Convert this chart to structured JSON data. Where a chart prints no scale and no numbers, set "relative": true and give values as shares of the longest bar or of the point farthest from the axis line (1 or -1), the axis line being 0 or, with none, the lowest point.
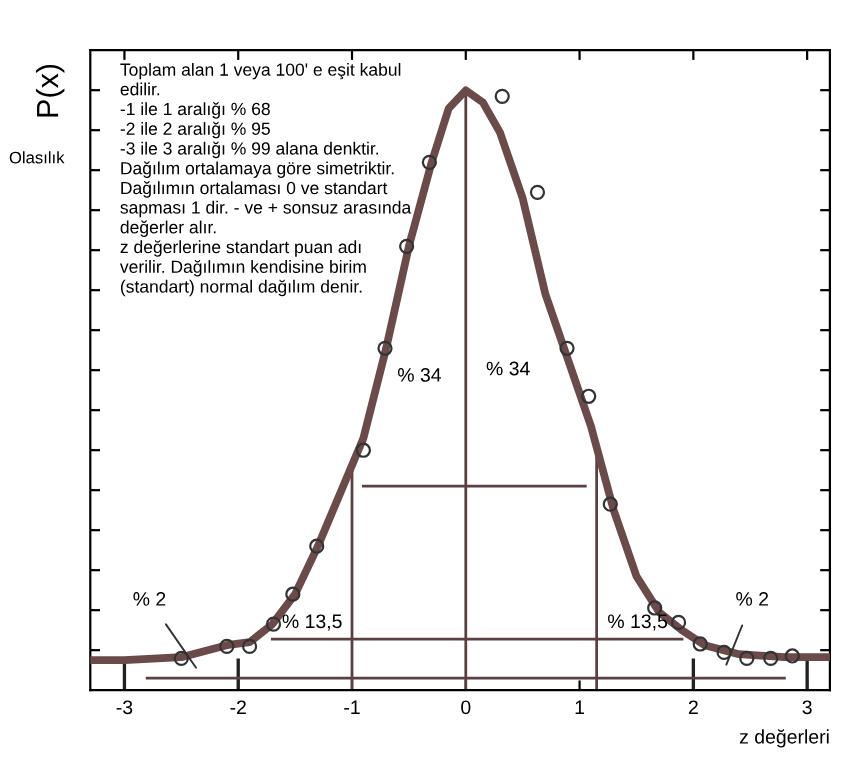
{
  "chart_data": {
    "type": "line",
    "relative": true,
    "xlabel": "z değerleri",
    "ylabel": "P(x)",
    "xlim": [
      -3.3,
      3.2
    ],
    "xticks": [
      -3,
      -2,
      -1,
      0,
      1,
      2,
      3
    ],
    "tick_labels": "x",
    "grid": false,
    "legend": false,
    "series": [
      {
        "color": "#6b4a4a",
        "marker": "none",
        "line_style": "solid",
        "x": [
          -3.3,
          -3.0,
          -2.5,
          -2.1,
          -1.9,
          -1.7,
          -1.5,
          -1.3,
          -1.1,
          -0.9,
          -0.7,
          -0.5,
          -0.3,
          -0.15,
          0,
          0.15,
          0.3,
          0.5,
          0.7,
          0.9,
          1.1,
          1.3,
          1.5,
          1.7,
          1.9,
          2.1,
          2.4,
          2.8,
          3.2
        ],
        "values": [
          0.05,
          0.05,
          0.055,
          0.075,
          0.08,
          0.11,
          0.16,
          0.24,
          0.33,
          0.42,
          0.57,
          0.74,
          0.88,
          0.97,
          1.0,
          0.98,
          0.93,
          0.82,
          0.66,
          0.55,
          0.44,
          0.3,
          0.19,
          0.13,
          0.1,
          0.075,
          0.06,
          0.055,
          0.055
        ]
      },
      {
        "type": "scatter",
        "color": "#333333",
        "marker": "circle",
        "x": [
          -2.5,
          -2.1,
          -1.9,
          -1.69,
          -1.52,
          -1.31,
          -0.9,
          -0.71,
          -0.52,
          -0.32,
          0.32,
          0.63,
          0.89,
          1.08,
          1.27,
          1.66,
          1.87,
          2.06,
          2.27,
          2.47,
          2.68,
          2.87
        ],
        "values": [
          0.053,
          0.073,
          0.073,
          0.11,
          0.16,
          0.24,
          0.4,
          0.57,
          0.74,
          0.88,
          0.99,
          0.83,
          0.57,
          0.49,
          0.31,
          0.137,
          0.113,
          0.077,
          0.063,
          0.053,
          0.053,
          0.057
        ]
      }
    ],
    "ref_lines": [
      {
        "axis": "x",
        "value": -1,
        "color": "#5a4040"
      },
      {
        "axis": "x",
        "value": 0,
        "color": "#5a4040"
      },
      {
        "axis": "x",
        "value": 1.15,
        "color": "#5a4040"
      }
    ],
    "annotations": [
      "Toplam alan 1 veya 100' e eşit kabul\nedilir.\n-1 ile 1 aralığı % 68\n-2 ile 2 aralığı % 95\n-3 ile 3 aralığı % 99 alana denktir.\nDağılım ortalamaya göre simetriktir.\nDağılımın ortalaması 0 ve standart\nsapması 1 dir. - ve + sonsuz arasında\ndeğerler alır.\nz değerlerine standart puan adı\nverilir. Dağılımın kendisine birim\n(standart) normal dağılım denir.",
      "Olasılık",
      "% 34",
      "% 34",
      "% 13,5",
      "% 13,5",
      "% 2",
      "% 2"
    ]
  }
}
